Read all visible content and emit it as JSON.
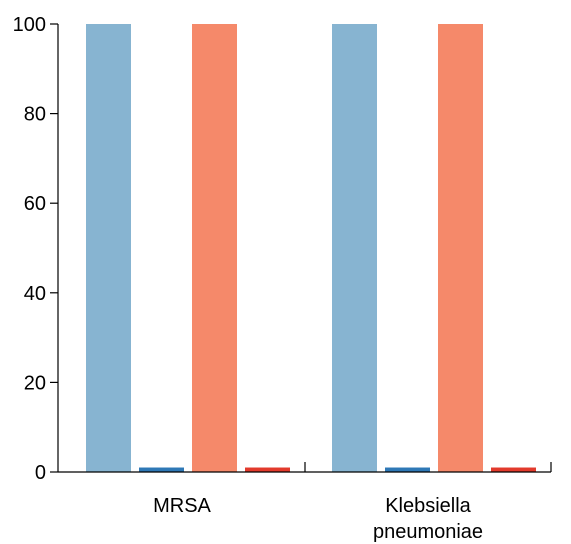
{
  "chart_data": {
    "type": "bar",
    "categories": [
      "MRSA",
      "Klebsiella pneumoniae"
    ],
    "category_label_lines": [
      [
        "MRSA"
      ],
      [
        "Klebsiella",
        "pneumoniae"
      ]
    ],
    "series": [
      {
        "values": [
          100,
          100
        ],
        "color": "#87b4d1"
      },
      {
        "values": [
          1,
          1
        ],
        "color": "#2e78b6"
      },
      {
        "values": [
          100,
          100
        ],
        "color": "#f5896a"
      },
      {
        "values": [
          1,
          1
        ],
        "color": "#e23a2c"
      }
    ],
    "ylim": [
      0,
      100
    ],
    "yticks": [
      0,
      20,
      40,
      60,
      80,
      100
    ],
    "ytick_labels": [
      "0",
      "20",
      "40",
      "60",
      "80",
      "100"
    ],
    "title": "",
    "xlabel": "",
    "ylabel": "",
    "grid": false,
    "legend": "none"
  }
}
